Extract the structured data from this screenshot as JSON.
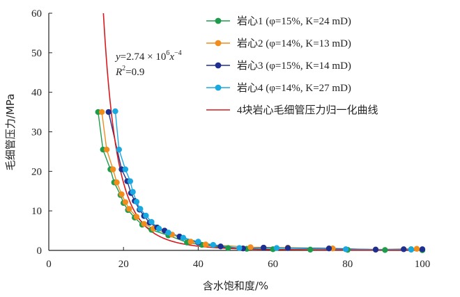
{
  "chart_data": {
    "type": "scatter",
    "xlabel": "含水饱和度/%",
    "ylabel": "毛细管压力/MPa",
    "xlim": [
      0,
      100
    ],
    "ylim": [
      0,
      60
    ],
    "xticks": [
      "0",
      "20",
      "40",
      "60",
      "80",
      "100"
    ],
    "yticks": [
      "0",
      "10",
      "20",
      "30",
      "40",
      "50",
      "60"
    ],
    "legend_position": "top-right",
    "grid": false,
    "annotation": {
      "formula_prefix": "y",
      "formula_mid": "=2.74 × 10",
      "formula_exp1": "6",
      "formula_var": "x",
      "formula_exp2": "−4",
      "r2_label": "R",
      "r2_exp": "2",
      "r2_value": "=0.9"
    },
    "series": [
      {
        "name": "岩心1 (φ=15%, K=24 mD)",
        "color": "#1e9b4b",
        "marker": "circle",
        "points": [
          [
            13.2,
            35
          ],
          [
            14.5,
            25.5
          ],
          [
            16.5,
            20.5
          ],
          [
            17.5,
            17.2
          ],
          [
            19.2,
            14
          ],
          [
            20,
            12
          ],
          [
            21.2,
            10.2
          ],
          [
            23,
            8.3
          ],
          [
            25,
            6.5
          ],
          [
            27.5,
            5.2
          ],
          [
            32,
            3.8
          ],
          [
            37,
            2
          ],
          [
            41,
            1.4
          ],
          [
            48,
            0.6
          ],
          [
            53,
            0.4
          ],
          [
            60,
            0.3
          ],
          [
            70,
            0.2
          ],
          [
            80,
            0.15
          ],
          [
            90,
            0.1
          ],
          [
            97,
            0.3
          ],
          [
            100,
            0.05
          ]
        ]
      },
      {
        "name": "岩心2 (φ=14%, K=13 mD)",
        "color": "#f28c1c",
        "marker": "circle",
        "points": [
          [
            14.2,
            35
          ],
          [
            15.5,
            25.5
          ],
          [
            17.2,
            20.5
          ],
          [
            18.2,
            17.2
          ],
          [
            19.5,
            14.2
          ],
          [
            20.5,
            12.2
          ],
          [
            21.5,
            10.5
          ],
          [
            23.5,
            8.5
          ],
          [
            25.5,
            6.7
          ],
          [
            28,
            5.5
          ],
          [
            33,
            4
          ],
          [
            38,
            2.2
          ],
          [
            42,
            1.5
          ],
          [
            54,
            0.8
          ],
          [
            64,
            0.7
          ],
          [
            76,
            0.5
          ],
          [
            87.5,
            0.2
          ],
          [
            98.5,
            0.4
          ]
        ]
      },
      {
        "name": "岩心3 (φ=15%, K=14 mD)",
        "color": "#1f2f8f",
        "marker": "circle",
        "points": [
          [
            16,
            35
          ],
          [
            19.5,
            20.5
          ],
          [
            21,
            17.5
          ],
          [
            22,
            14.5
          ],
          [
            23,
            12.5
          ],
          [
            24.3,
            10.3
          ],
          [
            25.5,
            8.7
          ],
          [
            27,
            7
          ],
          [
            29,
            5.8
          ],
          [
            31,
            5
          ],
          [
            35,
            3.5
          ],
          [
            40,
            2
          ],
          [
            46,
            1
          ],
          [
            52,
            0.5
          ],
          [
            57.5,
            0.7
          ],
          [
            64,
            0.6
          ],
          [
            75,
            0.5
          ],
          [
            87.5,
            0.2
          ],
          [
            95,
            0.3
          ],
          [
            100,
            0.3
          ]
        ]
      },
      {
        "name": "岩心4 (φ=14%, K=27 mD)",
        "color": "#1aa8e0",
        "marker": "circle",
        "points": [
          [
            17.8,
            35.2
          ],
          [
            18.8,
            25.5
          ],
          [
            20.5,
            20.5
          ],
          [
            21.8,
            17.5
          ],
          [
            22.5,
            14.8
          ],
          [
            23.5,
            12.3
          ],
          [
            24.5,
            10.5
          ],
          [
            26,
            8.8
          ],
          [
            27.5,
            7.2
          ],
          [
            29.5,
            5.5
          ],
          [
            32,
            4.5
          ],
          [
            36,
            3.2
          ],
          [
            40,
            2.2
          ],
          [
            44,
            1.4
          ],
          [
            51,
            0.6
          ],
          [
            61,
            0.6
          ],
          [
            79.5,
            0.3
          ],
          [
            97,
            0.2
          ]
        ]
      },
      {
        "name": "4块岩心毛细管压力归一化曲线",
        "color": "#d7191c",
        "marker": "line",
        "formula": "y = 2.74e6 * x^-4"
      }
    ]
  }
}
